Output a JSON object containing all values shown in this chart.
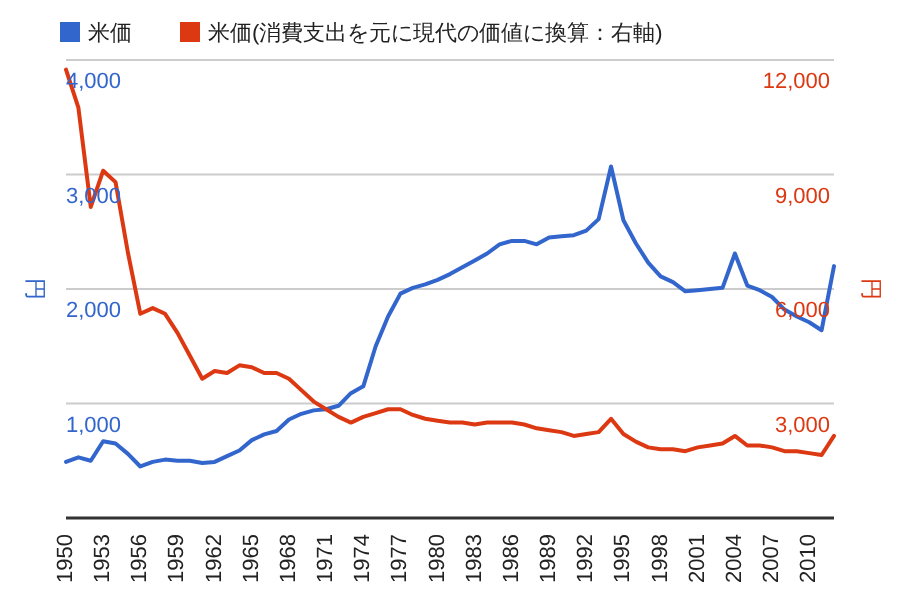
{
  "chart_data": {
    "type": "line",
    "ylabel": "円",
    "y2label": "円",
    "x": [
      1950,
      1951,
      1952,
      1953,
      1954,
      1955,
      1956,
      1957,
      1958,
      1959,
      1960,
      1961,
      1962,
      1963,
      1964,
      1965,
      1966,
      1967,
      1968,
      1969,
      1970,
      1971,
      1972,
      1973,
      1974,
      1975,
      1976,
      1977,
      1978,
      1979,
      1980,
      1981,
      1982,
      1983,
      1984,
      1985,
      1986,
      1987,
      1988,
      1989,
      1990,
      1991,
      1992,
      1993,
      1994,
      1995,
      1996,
      1997,
      1998,
      1999,
      2000,
      2001,
      2002,
      2003,
      2004,
      2005,
      2006,
      2007,
      2008,
      2009,
      2010,
      2011,
      2012
    ],
    "series": [
      {
        "name": "米価",
        "color": "#3366cc",
        "values": [
          490,
          530,
          500,
          670,
          650,
          560,
          450,
          490,
          510,
          500,
          500,
          480,
          490,
          540,
          590,
          680,
          730,
          760,
          860,
          910,
          940,
          950,
          980,
          1090,
          1150,
          1500,
          1760,
          1960,
          2010,
          2040,
          2080,
          2130,
          2190,
          2250,
          2310,
          2390,
          2420,
          2420,
          2390,
          2450,
          2460,
          2470,
          2510,
          2610,
          3070,
          2600,
          2400,
          2230,
          2110,
          2060,
          1980,
          1990,
          2000,
          2010,
          2310,
          2030,
          1990,
          1930,
          1820,
          1760,
          1710,
          1640,
          2200
        ]
      },
      {
        "name": "米価(消費支出を元に現代の価値に換算：右軸)",
        "color": "#dc3912",
        "axis": "y2",
        "values": [
          11750,
          10750,
          8150,
          9100,
          8800,
          6950,
          5350,
          5500,
          5350,
          4850,
          4250,
          3650,
          3850,
          3800,
          4000,
          3950,
          3800,
          3800,
          3650,
          3350,
          3050,
          2850,
          2650,
          2500,
          2650,
          2750,
          2850,
          2850,
          2700,
          2600,
          2550,
          2500,
          2500,
          2450,
          2500,
          2500,
          2500,
          2450,
          2350,
          2300,
          2250,
          2150,
          2200,
          2250,
          2600,
          2200,
          2000,
          1850,
          1800,
          1800,
          1750,
          1850,
          1900,
          1950,
          2150,
          1900,
          1900,
          1850,
          1750,
          1750,
          1700,
          1650,
          2150
        ]
      }
    ],
    "xlim": [
      1950,
      2012
    ],
    "xticks": [
      1950,
      1953,
      1956,
      1959,
      1962,
      1965,
      1968,
      1971,
      1974,
      1977,
      1980,
      1983,
      1986,
      1989,
      1992,
      1995,
      1998,
      2001,
      2004,
      2007,
      2010
    ],
    "ylim": [
      0,
      4000
    ],
    "yticks": [
      {
        "value": 1000,
        "label": "1,000"
      },
      {
        "value": 2000,
        "label": "2,000"
      },
      {
        "value": 3000,
        "label": "3,000"
      },
      {
        "value": 4000,
        "label": "4,000"
      }
    ],
    "y2lim": [
      0,
      12000
    ],
    "y2ticks": [
      {
        "value": 3000,
        "label": "3,000"
      },
      {
        "value": 6000,
        "label": "6,000"
      },
      {
        "value": 9000,
        "label": "9,000"
      },
      {
        "value": 12000,
        "label": "12,000"
      }
    ],
    "grid": true,
    "legend": "top",
    "marker": "none",
    "line_style": "solid"
  }
}
